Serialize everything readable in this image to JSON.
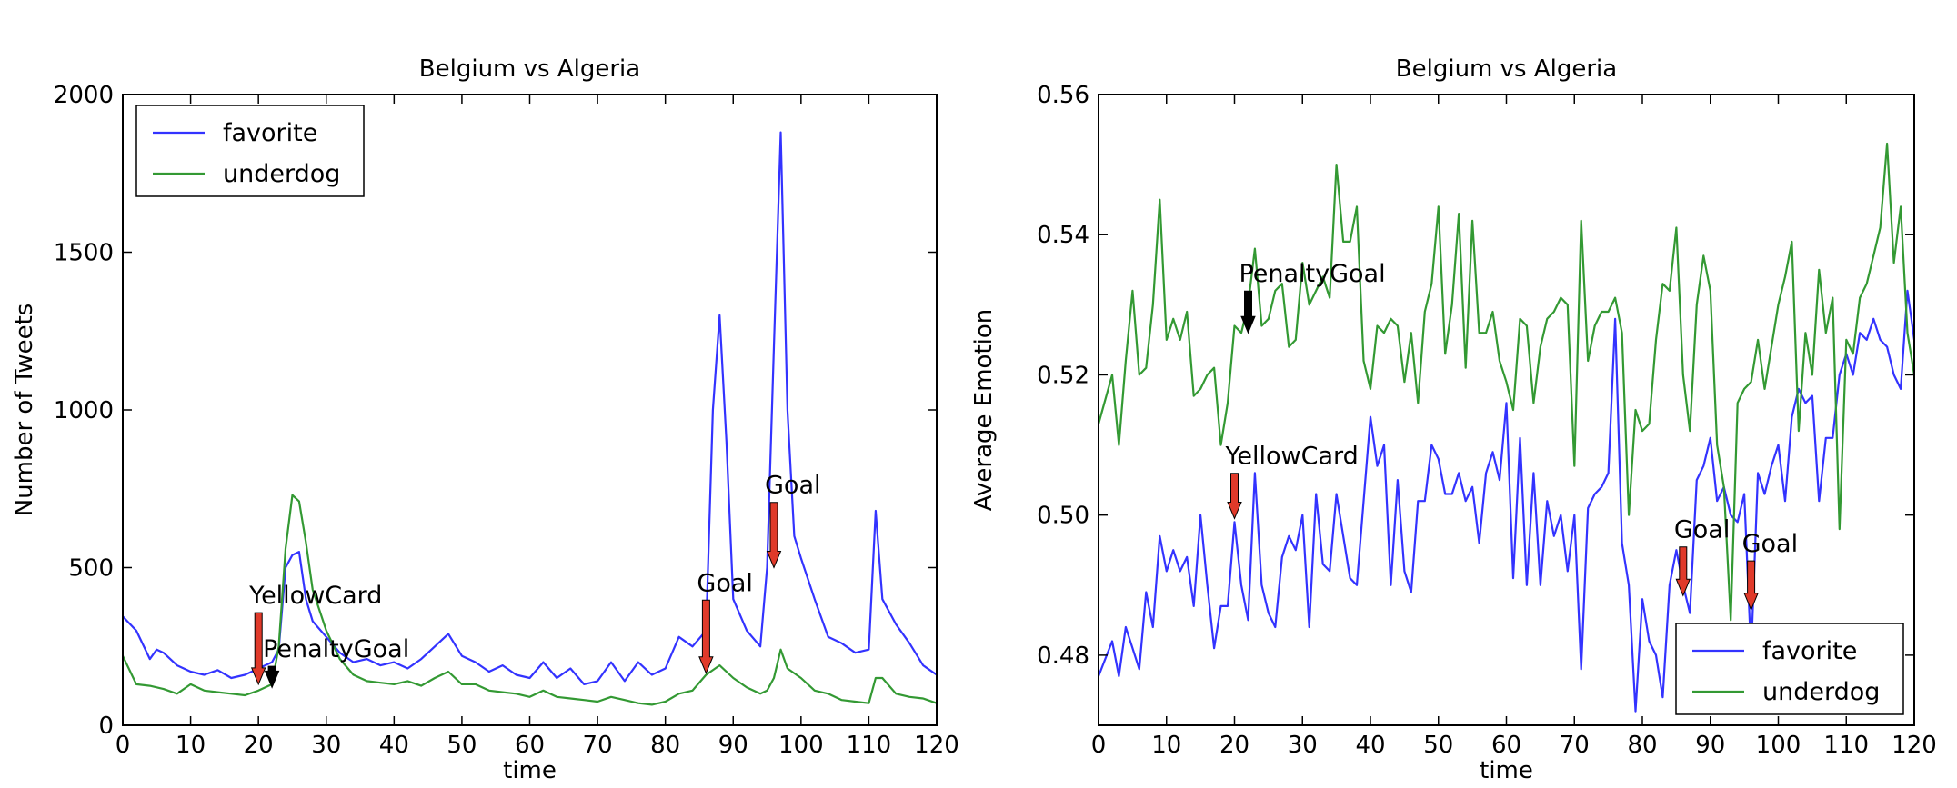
{
  "chart_data": [
    {
      "type": "line",
      "title": "Belgium vs Algeria",
      "xlabel": "time",
      "ylabel": "Number of Tweets",
      "xlim": [
        0,
        120
      ],
      "ylim": [
        0,
        2000
      ],
      "xticks": [
        0,
        10,
        20,
        30,
        40,
        50,
        60,
        70,
        80,
        90,
        100,
        110,
        120
      ],
      "yticks": [
        0,
        500,
        1000,
        1500,
        2000
      ],
      "legend_position": "top-left",
      "series": [
        {
          "name": "favorite",
          "color": "#3333ff",
          "x": [
            0,
            2,
            4,
            5,
            6,
            8,
            10,
            12,
            14,
            16,
            18,
            20,
            22,
            23,
            24,
            25,
            26,
            27,
            28,
            30,
            32,
            34,
            36,
            38,
            40,
            42,
            44,
            46,
            48,
            50,
            52,
            54,
            56,
            58,
            60,
            62,
            64,
            66,
            68,
            70,
            72,
            74,
            76,
            78,
            80,
            82,
            84,
            86,
            87,
            88,
            89,
            90,
            92,
            94,
            95,
            96,
            97,
            98,
            99,
            100,
            102,
            104,
            106,
            108,
            110,
            111,
            112,
            114,
            116,
            118,
            120
          ],
          "y": [
            345,
            300,
            210,
            240,
            230,
            190,
            170,
            160,
            175,
            150,
            160,
            180,
            200,
            240,
            500,
            540,
            550,
            400,
            330,
            280,
            230,
            200,
            210,
            190,
            200,
            180,
            210,
            250,
            290,
            220,
            200,
            170,
            190,
            160,
            150,
            200,
            150,
            180,
            130,
            140,
            200,
            140,
            200,
            160,
            180,
            280,
            250,
            300,
            1000,
            1300,
            900,
            400,
            300,
            250,
            500,
            1200,
            1880,
            1000,
            600,
            530,
            400,
            280,
            260,
            230,
            240,
            680,
            400,
            320,
            260,
            190,
            160
          ]
        },
        {
          "name": "underdog",
          "color": "#339933",
          "x": [
            0,
            2,
            4,
            6,
            8,
            10,
            12,
            14,
            16,
            18,
            20,
            22,
            23,
            24,
            25,
            26,
            27,
            28,
            30,
            32,
            34,
            36,
            38,
            40,
            42,
            44,
            46,
            48,
            50,
            52,
            54,
            56,
            58,
            60,
            62,
            64,
            66,
            68,
            70,
            72,
            74,
            76,
            78,
            80,
            82,
            84,
            86,
            88,
            90,
            92,
            94,
            95,
            96,
            97,
            98,
            100,
            102,
            104,
            106,
            108,
            110,
            111,
            112,
            114,
            116,
            118,
            120
          ],
          "y": [
            220,
            130,
            125,
            115,
            100,
            130,
            110,
            105,
            100,
            95,
            110,
            130,
            250,
            560,
            730,
            710,
            580,
            430,
            300,
            210,
            160,
            140,
            135,
            130,
            140,
            125,
            150,
            170,
            130,
            130,
            110,
            105,
            100,
            90,
            110,
            90,
            85,
            80,
            75,
            90,
            80,
            70,
            65,
            75,
            100,
            110,
            160,
            190,
            150,
            120,
            100,
            110,
            150,
            240,
            180,
            150,
            110,
            100,
            80,
            75,
            70,
            150,
            150,
            100,
            90,
            85,
            70
          ]
        }
      ],
      "annotations": [
        {
          "text": "YellowCard",
          "x": 20,
          "y": 380,
          "arrow_to": 130,
          "arrow_color": "#e03a2a"
        },
        {
          "text": "PenaltyGoal",
          "x": 22,
          "y": 210,
          "arrow_to": 120,
          "arrow_color": "#000000"
        },
        {
          "text": "Goal",
          "x": 86,
          "y": 420,
          "arrow_to": 165,
          "arrow_color": "#e03a2a"
        },
        {
          "text": "Goal",
          "x": 96,
          "y": 730,
          "arrow_to": 500,
          "arrow_color": "#e03a2a"
        }
      ]
    },
    {
      "type": "line",
      "title": "Belgium vs Algeria",
      "xlabel": "time",
      "ylabel": "Average Emotion",
      "xlim": [
        0,
        120
      ],
      "ylim": [
        0.47,
        0.56
      ],
      "xticks": [
        0,
        10,
        20,
        30,
        40,
        50,
        60,
        70,
        80,
        90,
        100,
        110,
        120
      ],
      "yticks": [
        0.48,
        0.5,
        0.52,
        0.54,
        0.56
      ],
      "ytick_labels": [
        "0.48",
        "0.50",
        "0.52",
        "0.54",
        "0.56"
      ],
      "legend_position": "bottom-right",
      "series": [
        {
          "name": "favorite",
          "color": "#3333ff",
          "x": [
            0,
            2,
            3,
            4,
            5,
            6,
            7,
            8,
            9,
            10,
            11,
            12,
            13,
            14,
            15,
            16,
            17,
            18,
            19,
            20,
            21,
            22,
            23,
            24,
            25,
            26,
            27,
            28,
            29,
            30,
            31,
            32,
            33,
            34,
            35,
            36,
            37,
            38,
            39,
            40,
            41,
            42,
            43,
            44,
            45,
            46,
            47,
            48,
            49,
            50,
            51,
            52,
            53,
            54,
            55,
            56,
            57,
            58,
            59,
            60,
            61,
            62,
            63,
            64,
            65,
            66,
            67,
            68,
            69,
            70,
            71,
            72,
            73,
            74,
            75,
            76,
            77,
            78,
            79,
            80,
            81,
            82,
            83,
            84,
            85,
            86,
            87,
            88,
            89,
            90,
            91,
            92,
            93,
            94,
            95,
            96,
            97,
            98,
            99,
            100,
            101,
            102,
            103,
            104,
            105,
            106,
            107,
            108,
            109,
            110,
            111,
            112,
            113,
            114,
            115,
            116,
            117,
            118,
            119,
            120
          ],
          "y": [
            0.477,
            0.482,
            0.477,
            0.484,
            0.481,
            0.478,
            0.489,
            0.484,
            0.497,
            0.492,
            0.495,
            0.492,
            0.494,
            0.487,
            0.5,
            0.49,
            0.481,
            0.487,
            0.487,
            0.499,
            0.49,
            0.485,
            0.506,
            0.49,
            0.486,
            0.484,
            0.494,
            0.497,
            0.495,
            0.5,
            0.484,
            0.503,
            0.493,
            0.492,
            0.503,
            0.497,
            0.491,
            0.49,
            0.502,
            0.514,
            0.507,
            0.51,
            0.49,
            0.505,
            0.492,
            0.489,
            0.502,
            0.502,
            0.51,
            0.508,
            0.503,
            0.503,
            0.506,
            0.502,
            0.504,
            0.496,
            0.506,
            0.509,
            0.505,
            0.516,
            0.491,
            0.511,
            0.49,
            0.506,
            0.49,
            0.502,
            0.497,
            0.5,
            0.492,
            0.5,
            0.478,
            0.501,
            0.503,
            0.504,
            0.506,
            0.528,
            0.496,
            0.49,
            0.472,
            0.488,
            0.482,
            0.48,
            0.474,
            0.49,
            0.495,
            0.49,
            0.486,
            0.505,
            0.507,
            0.511,
            0.502,
            0.504,
            0.5,
            0.499,
            0.503,
            0.48,
            0.506,
            0.503,
            0.507,
            0.51,
            0.502,
            0.514,
            0.518,
            0.516,
            0.517,
            0.502,
            0.511,
            0.511,
            0.52,
            0.523,
            0.52,
            0.526,
            0.525,
            0.528,
            0.525,
            0.524,
            0.52,
            0.518,
            0.532,
            0.525
          ]
        },
        {
          "name": "underdog",
          "color": "#339933",
          "x": [
            0,
            2,
            3,
            4,
            5,
            6,
            7,
            8,
            9,
            10,
            11,
            12,
            13,
            14,
            15,
            16,
            17,
            18,
            19,
            20,
            21,
            22,
            23,
            24,
            25,
            26,
            27,
            28,
            29,
            30,
            31,
            32,
            33,
            34,
            35,
            36,
            37,
            38,
            39,
            40,
            41,
            42,
            43,
            44,
            45,
            46,
            47,
            48,
            49,
            50,
            51,
            52,
            53,
            54,
            55,
            56,
            57,
            58,
            59,
            60,
            61,
            62,
            63,
            64,
            65,
            66,
            67,
            68,
            69,
            70,
            71,
            72,
            73,
            74,
            75,
            76,
            77,
            78,
            79,
            80,
            81,
            82,
            83,
            84,
            85,
            86,
            87,
            88,
            89,
            90,
            91,
            92,
            93,
            94,
            95,
            96,
            97,
            98,
            99,
            100,
            101,
            102,
            103,
            104,
            105,
            106,
            107,
            108,
            109,
            110,
            111,
            112,
            113,
            114,
            115,
            116,
            117,
            118,
            119,
            120
          ],
          "y": [
            0.513,
            0.52,
            0.51,
            0.522,
            0.532,
            0.52,
            0.521,
            0.53,
            0.545,
            0.525,
            0.528,
            0.525,
            0.529,
            0.517,
            0.518,
            0.52,
            0.521,
            0.51,
            0.516,
            0.527,
            0.526,
            0.53,
            0.538,
            0.527,
            0.528,
            0.532,
            0.533,
            0.524,
            0.525,
            0.536,
            0.53,
            0.532,
            0.534,
            0.531,
            0.55,
            0.539,
            0.539,
            0.544,
            0.522,
            0.518,
            0.527,
            0.526,
            0.528,
            0.527,
            0.519,
            0.526,
            0.516,
            0.529,
            0.533,
            0.544,
            0.523,
            0.53,
            0.543,
            0.521,
            0.542,
            0.526,
            0.526,
            0.529,
            0.522,
            0.519,
            0.515,
            0.528,
            0.527,
            0.516,
            0.524,
            0.528,
            0.529,
            0.531,
            0.53,
            0.507,
            0.542,
            0.522,
            0.527,
            0.529,
            0.529,
            0.531,
            0.526,
            0.5,
            0.515,
            0.512,
            0.513,
            0.525,
            0.533,
            0.532,
            0.541,
            0.52,
            0.512,
            0.53,
            0.537,
            0.532,
            0.51,
            0.504,
            0.485,
            0.516,
            0.518,
            0.519,
            0.525,
            0.518,
            0.524,
            0.53,
            0.534,
            0.539,
            0.512,
            0.526,
            0.52,
            0.535,
            0.526,
            0.531,
            0.498,
            0.525,
            0.523,
            0.531,
            0.533,
            0.537,
            0.541,
            0.553,
            0.536,
            0.544,
            0.526,
            0.52
          ]
        }
      ],
      "annotations": [
        {
          "text": "PenaltyGoal",
          "x": 22,
          "y": 0.533,
          "arrow_to": 0.526,
          "arrow_color": "#000000"
        },
        {
          "text": "YellowCard",
          "x": 20,
          "y": 0.507,
          "arrow_to": 0.4995,
          "arrow_color": "#e03a2a"
        },
        {
          "text": "Goal",
          "x": 86,
          "y": 0.4965,
          "arrow_to": 0.4885,
          "arrow_color": "#e03a2a"
        },
        {
          "text": "Goal",
          "x": 96,
          "y": 0.4945,
          "arrow_to": 0.4865,
          "arrow_color": "#e03a2a"
        }
      ]
    }
  ]
}
